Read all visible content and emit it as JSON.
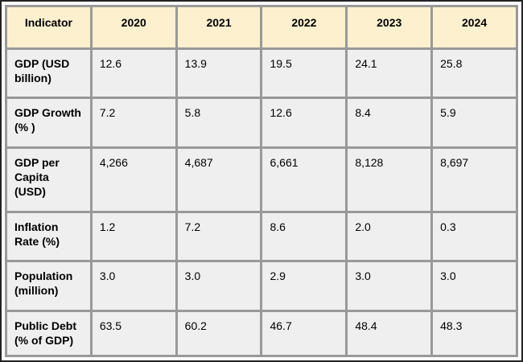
{
  "colors": {
    "header_bg": "#fcf0ce",
    "cell_bg": "#efefef",
    "grid_border": "#999999",
    "outer_border": "#222222",
    "text": "#000000"
  },
  "table": {
    "columns": [
      "Indicator",
      "2020",
      "2021",
      "2022",
      "2023",
      "2024"
    ],
    "rows": [
      {
        "label": "GDP (USD\nbillion)",
        "values": [
          "12.6",
          "13.9",
          "19.5",
          "24.1",
          "25.8"
        ]
      },
      {
        "label": "GDP Growth\n(% )",
        "values": [
          "7.2",
          "5.8",
          "12.6",
          "8.4",
          "5.9"
        ]
      },
      {
        "label": "GDP per\nCapita\n(USD)",
        "values": [
          "4,266",
          "4,687",
          "6,661",
          "8,128",
          "8,697"
        ]
      },
      {
        "label": "Inflation\nRate (%)",
        "values": [
          "1.2",
          "7.2",
          "8.6",
          "2.0",
          "0.3"
        ]
      },
      {
        "label": "Population\n(million)",
        "values": [
          "3.0",
          "3.0",
          "2.9",
          "3.0",
          "3.0"
        ]
      },
      {
        "label": "Public Debt\n(% of GDP)",
        "values": [
          "63.5",
          "60.2",
          "46.7",
          "48.4",
          "48.3"
        ]
      }
    ]
  },
  "chart_data": {
    "type": "table",
    "title": "",
    "categories": [
      "2020",
      "2021",
      "2022",
      "2023",
      "2024"
    ],
    "series": [
      {
        "name": "GDP (USD billion)",
        "values": [
          12.6,
          13.9,
          19.5,
          24.1,
          25.8
        ]
      },
      {
        "name": "GDP Growth (%)",
        "values": [
          7.2,
          5.8,
          12.6,
          8.4,
          5.9
        ]
      },
      {
        "name": "GDP per Capita (USD)",
        "values": [
          4266,
          4687,
          6661,
          8128,
          8697
        ]
      },
      {
        "name": "Inflation Rate (%)",
        "values": [
          1.2,
          7.2,
          8.6,
          2.0,
          0.3
        ]
      },
      {
        "name": "Population (million)",
        "values": [
          3.0,
          3.0,
          2.9,
          3.0,
          3.0
        ]
      },
      {
        "name": "Public Debt (% of GDP)",
        "values": [
          63.5,
          60.2,
          46.7,
          48.4,
          48.3
        ]
      }
    ]
  }
}
